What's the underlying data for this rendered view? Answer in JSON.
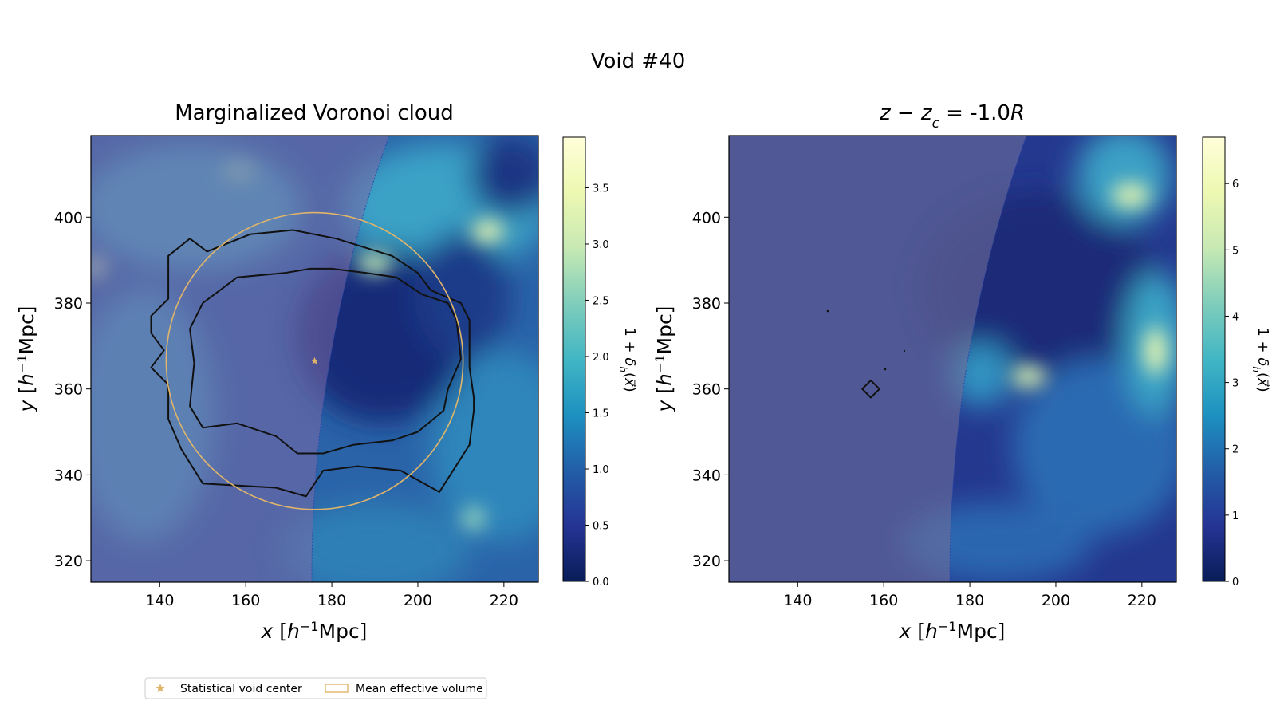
{
  "figure": {
    "suptitle": "Void #40",
    "colormap": [
      "#081d58",
      "#253494",
      "#225ea8",
      "#1d91c0",
      "#41b6c4",
      "#7fcdbb",
      "#c7e9b4",
      "#edf8b1",
      "#ffffd9"
    ],
    "accent_color": "#e0b56a",
    "legend": {
      "placement": "lower-left",
      "items": [
        {
          "label": "Statistical void center",
          "marker": "star-icon"
        },
        {
          "label": "Mean effective volume",
          "marker": "rect-outline-icon"
        }
      ]
    }
  },
  "chart_data": [
    {
      "type": "heatmap",
      "title": "Marginalized Voronoi cloud",
      "xlabel_var": "x",
      "ylabel_var": "y",
      "unit_base": "h",
      "unit_sup": "−1",
      "unit_text": "Mpc]",
      "xlim": [
        124,
        228
      ],
      "ylim": [
        315,
        419
      ],
      "xticks": [
        140,
        160,
        180,
        200,
        220
      ],
      "yticks": [
        320,
        340,
        360,
        380,
        400
      ],
      "colorbar": {
        "label": "1 + δ_h(x⃗)",
        "range": [
          0,
          3.95
        ],
        "ticks": [
          "0.0",
          "0.5",
          "1.0",
          "1.5",
          "2.0",
          "2.5",
          "3.0",
          "3.5"
        ],
        "tick_values": [
          0,
          0.5,
          1.0,
          1.5,
          2.0,
          2.5,
          3.0,
          3.5
        ]
      },
      "void_center": [
        176,
        366.5
      ],
      "mean_effective_radius": 34.5,
      "contours": [
        [
          [
            142,
            391
          ],
          [
            147,
            395
          ],
          [
            151,
            392
          ],
          [
            161,
            396
          ],
          [
            171,
            397
          ],
          [
            181,
            395
          ],
          [
            194,
            391
          ],
          [
            200,
            387
          ],
          [
            203,
            383
          ],
          [
            210,
            380
          ],
          [
            212,
            376
          ],
          [
            212,
            365
          ],
          [
            213,
            358
          ],
          [
            213,
            355
          ],
          [
            212,
            347
          ],
          [
            205,
            336
          ],
          [
            196,
            341
          ],
          [
            186,
            342
          ],
          [
            178,
            341
          ],
          [
            174,
            335
          ],
          [
            167,
            337
          ],
          [
            150,
            338
          ],
          [
            145,
            346
          ],
          [
            142,
            353
          ],
          [
            142,
            361
          ],
          [
            138,
            365
          ],
          [
            141,
            369
          ],
          [
            138,
            373
          ],
          [
            138,
            377
          ],
          [
            142,
            381
          ],
          [
            142,
            386
          ]
        ],
        [
          [
            150,
            380
          ],
          [
            158,
            386
          ],
          [
            169,
            387
          ],
          [
            175,
            388
          ],
          [
            180,
            388
          ],
          [
            188,
            387
          ],
          [
            195,
            386
          ],
          [
            201,
            382
          ],
          [
            207,
            380
          ],
          [
            209,
            376
          ],
          [
            210,
            367
          ],
          [
            207,
            360
          ],
          [
            206,
            355
          ],
          [
            200,
            350
          ],
          [
            194,
            348
          ],
          [
            185,
            347
          ],
          [
            178,
            345
          ],
          [
            172,
            345
          ],
          [
            167,
            349
          ],
          [
            158,
            352
          ],
          [
            150,
            351
          ],
          [
            147,
            356
          ],
          [
            148,
            366
          ],
          [
            147,
            374
          ]
        ]
      ]
    },
    {
      "type": "heatmap",
      "title_prefix": "z − z",
      "title_sub": "c",
      "title_suffix": " = -1.0",
      "title_italic_tail": "R",
      "xlabel_var": "x",
      "ylabel_var": "y",
      "unit_base": "h",
      "unit_sup": "−1",
      "unit_text": "Mpc]",
      "xlim": [
        124,
        228
      ],
      "ylim": [
        315,
        419
      ],
      "xticks": [
        140,
        160,
        180,
        200,
        220
      ],
      "yticks": [
        320,
        340,
        360,
        380,
        400
      ],
      "colorbar": {
        "label": "1 + δ_h(x⃗)",
        "range": [
          0,
          6.7
        ],
        "ticks": [
          "0",
          "1",
          "2",
          "3",
          "4",
          "5",
          "6"
        ],
        "tick_values": [
          0,
          1,
          2,
          3,
          4,
          5,
          6
        ]
      },
      "contours": [
        [
          [
            155,
            360
          ],
          [
            157,
            362
          ],
          [
            159,
            360
          ],
          [
            157,
            358
          ]
        ]
      ]
    }
  ]
}
